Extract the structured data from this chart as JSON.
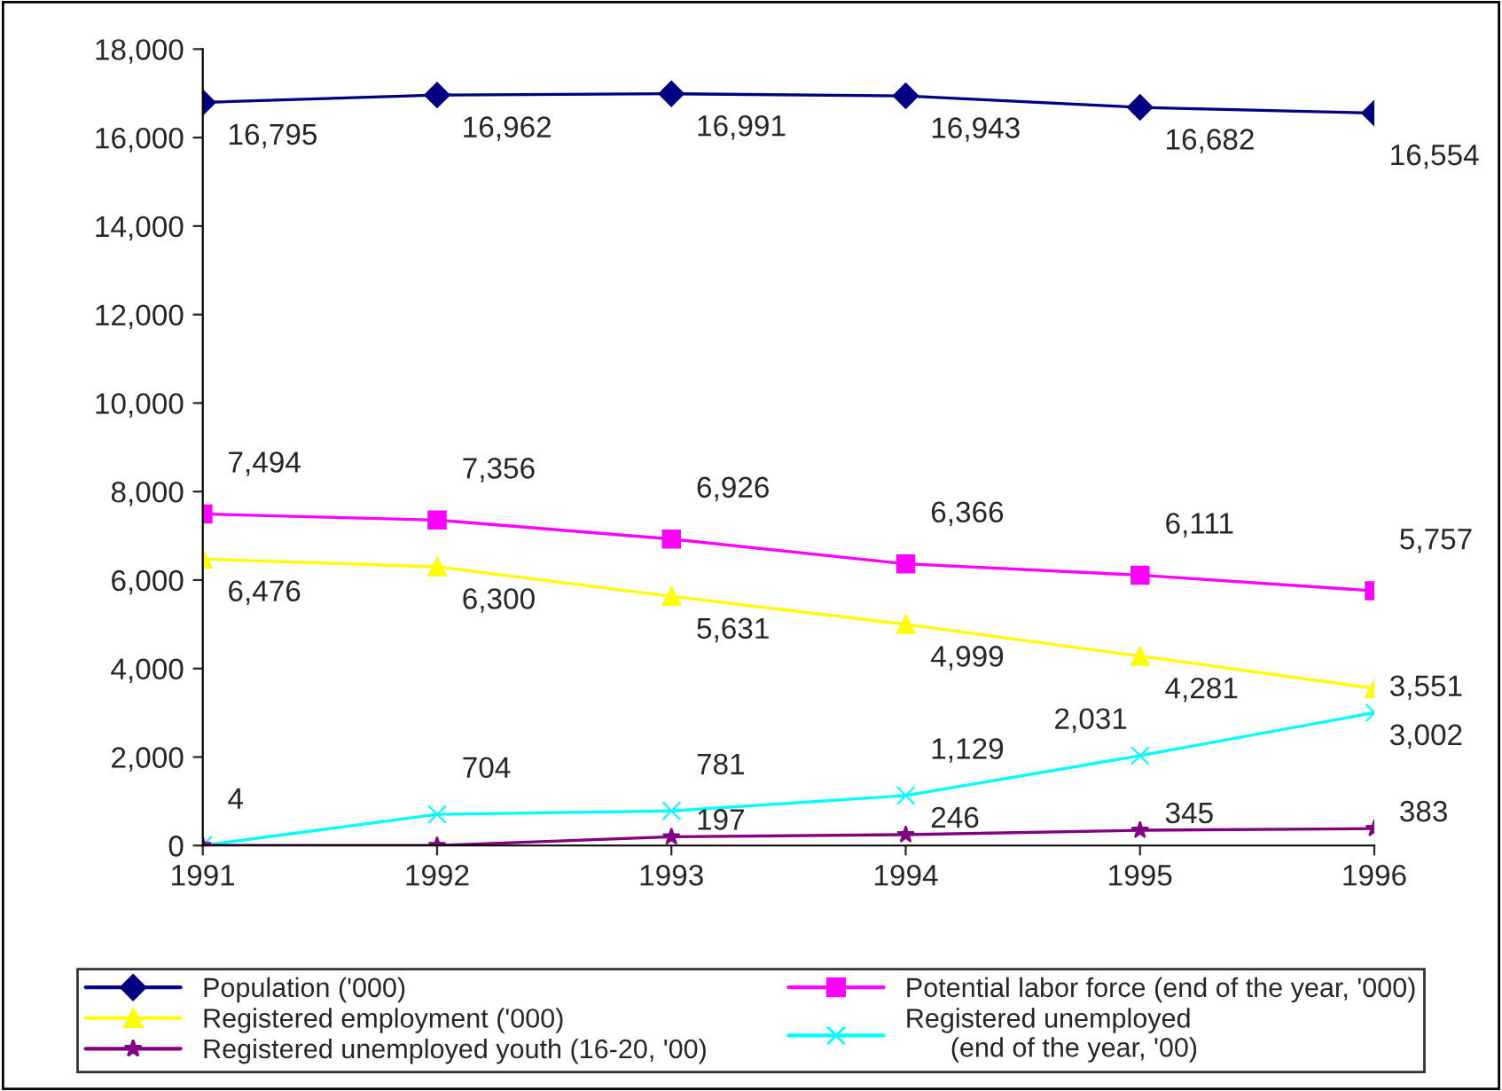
{
  "chart_data": {
    "type": "line",
    "categories": [
      "1991",
      "1992",
      "1993",
      "1994",
      "1995",
      "1996"
    ],
    "ylim": [
      0,
      18000
    ],
    "yticks": [
      {
        "value": 0,
        "label": "0"
      },
      {
        "value": 2000,
        "label": "2,000"
      },
      {
        "value": 4000,
        "label": "4,000"
      },
      {
        "value": 6000,
        "label": "6,000"
      },
      {
        "value": 8000,
        "label": "8,000"
      },
      {
        "value": 10000,
        "label": "10,000"
      },
      {
        "value": 12000,
        "label": "12,000"
      },
      {
        "value": 14000,
        "label": "14,000"
      },
      {
        "value": 16000,
        "label": "16,000"
      },
      {
        "value": 18000,
        "label": "18,000"
      }
    ],
    "grid": false,
    "legend": "bottom",
    "series": [
      {
        "name": "Population ('000)",
        "color": "#000080",
        "marker": "diamond",
        "values": [
          16795,
          16962,
          16991,
          16943,
          16682,
          16554
        ],
        "value_labels": [
          "16,795",
          "16,962",
          "16,991",
          "16,943",
          "16,682",
          "16,554"
        ]
      },
      {
        "name": "Potential labor force (end of the year, '000)",
        "color": "#ff00ff",
        "marker": "square",
        "values": [
          7494,
          7356,
          6926,
          6366,
          6111,
          5757
        ],
        "value_labels": [
          "7,494",
          "7,356",
          "6,926",
          "6,366",
          "6,111",
          "5,757"
        ]
      },
      {
        "name": "Registered employment ('000)",
        "color": "#ffff00",
        "marker": "triangle",
        "values": [
          6476,
          6300,
          5631,
          4999,
          4281,
          3551
        ],
        "value_labels": [
          "6,476",
          "6,300",
          "5,631",
          "4,999",
          "4,281",
          "3,551"
        ]
      },
      {
        "name": "Registered unemployed\n      (end of the year, '00)",
        "color": "#00ffff",
        "marker": "cross",
        "values": [
          4,
          704,
          781,
          1129,
          2031,
          3002
        ],
        "value_labels": [
          "4",
          "704",
          "781",
          "1,129",
          "2,031",
          "3,002"
        ]
      },
      {
        "name": "Registered unemployed youth (16-20, '00)",
        "color": "#800080",
        "marker": "star",
        "values": [
          0,
          0,
          197,
          246,
          345,
          383
        ],
        "value_labels": [
          null,
          null,
          "197",
          "246",
          "345",
          "383"
        ]
      }
    ]
  }
}
